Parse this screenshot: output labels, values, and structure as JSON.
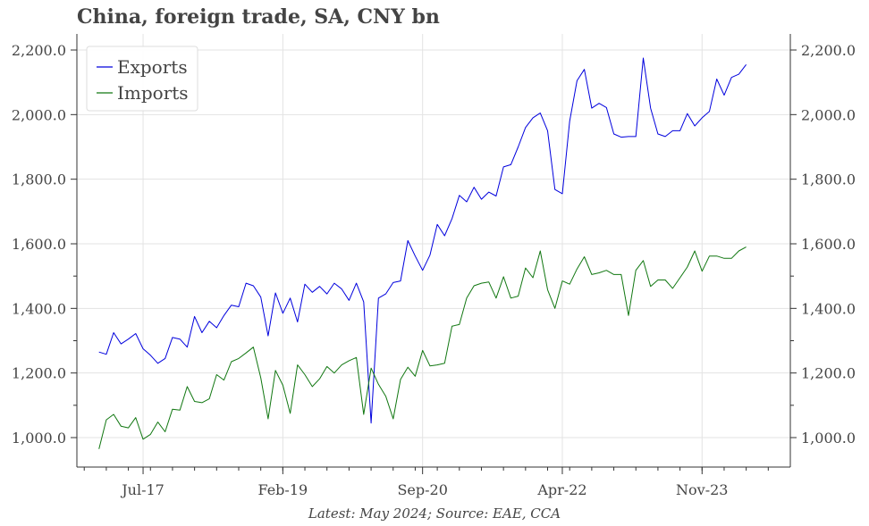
{
  "title": "China, foreign trade, SA, CNY bn",
  "footer": "Latest: May 2024; Source: EAE, CCA",
  "chart_data": {
    "type": "line",
    "title": "China, foreign trade, SA, CNY bn",
    "xlabel": "",
    "ylabel": "",
    "x_start": "2017-01",
    "x_end": "2024-05",
    "x_ticks": [
      "Jul-17",
      "Feb-19",
      "Sep-20",
      "Apr-22",
      "Nov-23"
    ],
    "ylim": [
      950,
      2200
    ],
    "y_ticks": [
      "1,000.0",
      "1,200.0",
      "1,400.0",
      "1,600.0",
      "1,800.0",
      "2,000.0",
      "2,200.0"
    ],
    "grid": true,
    "legend_position": "top-left",
    "colors": {
      "exports": "#0000dd",
      "imports": "#117711"
    },
    "series": [
      {
        "name": "Exports",
        "values": [
          1265,
          1258,
          1325,
          1290,
          1305,
          1322,
          1275,
          1255,
          1230,
          1245,
          1310,
          1305,
          1280,
          1375,
          1325,
          1360,
          1340,
          1378,
          1410,
          1405,
          1478,
          1470,
          1435,
          1315,
          1448,
          1385,
          1432,
          1358,
          1475,
          1450,
          1468,
          1445,
          1478,
          1460,
          1425,
          1478,
          1420,
          1045,
          1432,
          1445,
          1480,
          1485,
          1610,
          1562,
          1518,
          1565,
          1660,
          1625,
          1678,
          1750,
          1730,
          1775,
          1738,
          1760,
          1748,
          1838,
          1845,
          1900,
          1960,
          1990,
          2005,
          1950,
          1768,
          1755,
          1980,
          2105,
          2140,
          2020,
          2035,
          2022,
          1940,
          1930,
          1932,
          1932,
          2175,
          2020,
          1940,
          1932,
          1950,
          1950,
          2003,
          1965,
          1990,
          2010,
          2110,
          2060,
          2115,
          2125,
          2155
        ]
      },
      {
        "name": "Imports",
        "values": [
          965,
          1055,
          1072,
          1035,
          1030,
          1062,
          995,
          1010,
          1048,
          1018,
          1088,
          1085,
          1158,
          1112,
          1108,
          1120,
          1195,
          1178,
          1235,
          1245,
          1262,
          1280,
          1185,
          1058,
          1208,
          1162,
          1075,
          1225,
          1195,
          1158,
          1182,
          1220,
          1200,
          1225,
          1238,
          1248,
          1072,
          1215,
          1165,
          1128,
          1058,
          1180,
          1218,
          1190,
          1270,
          1222,
          1225,
          1230,
          1345,
          1350,
          1432,
          1470,
          1478,
          1482,
          1432,
          1498,
          1432,
          1438,
          1525,
          1495,
          1578,
          1458,
          1400,
          1485,
          1475,
          1522,
          1560,
          1505,
          1510,
          1518,
          1505,
          1505,
          1378,
          1518,
          1548,
          1468,
          1488,
          1488,
          1462,
          1495,
          1528,
          1578,
          1515,
          1562,
          1562,
          1555,
          1555,
          1578,
          1590
        ]
      }
    ]
  }
}
